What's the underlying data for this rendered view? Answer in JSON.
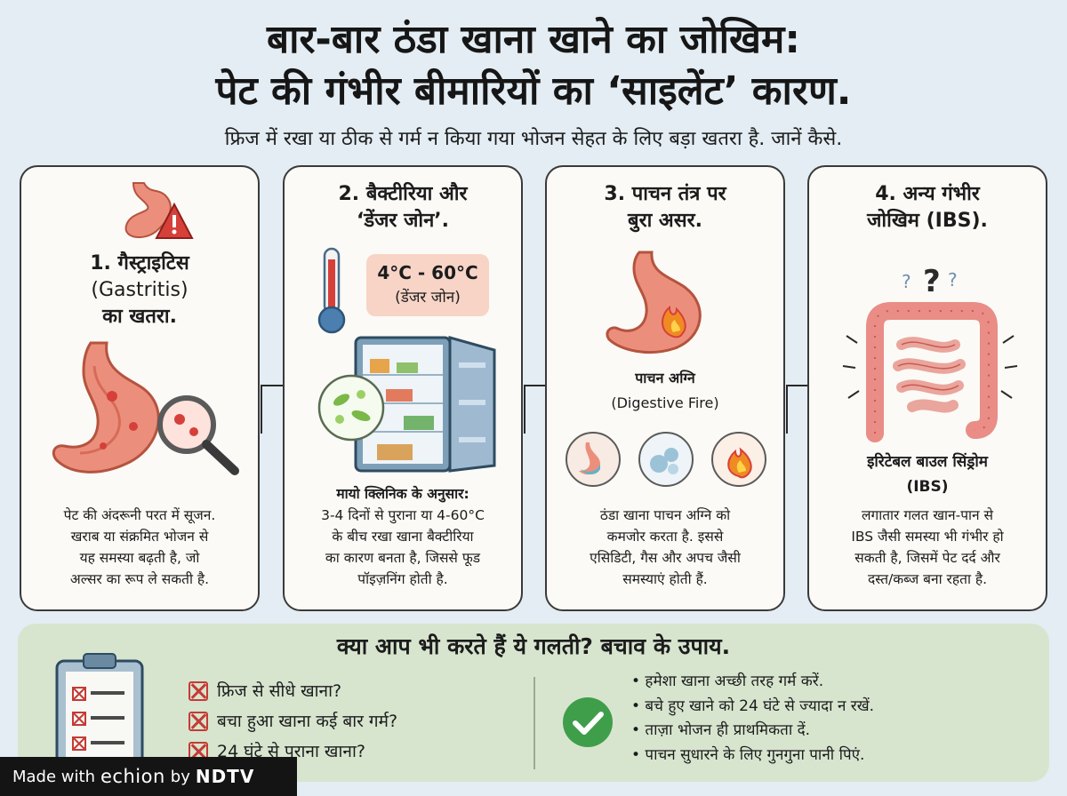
{
  "header": {
    "title_line1": "बार-बार ठंडा खाना खाने का जोखिम:",
    "title_line2": "पेट की गंभीर बीमारियों का ‘साइलेंट’ कारण.",
    "subtitle": "फ्रिज में रखा या ठीक से गर्म न किया गया भोजन सेहत के लिए बड़ा खतरा है. जानें कैसे."
  },
  "cards": [
    {
      "title_lines": [
        "1. गैस्ट्राइटिस",
        "(Gastritis)",
        "का खतरा."
      ],
      "body_lines": [
        "पेट की अंदरूनी परत में सूजन.",
        "खराब या संक्रमित भोजन से",
        "यह समस्या बढ़ती है, जो",
        "अल्सर का रूप ले सकती है."
      ]
    },
    {
      "title_lines": [
        "2. बैक्टीरिया और",
        "‘डेंजर जोन’."
      ],
      "temp_range": "4°C - 60°C",
      "temp_label": "(डेंजर जोन)",
      "body_heading": "मायो क्लिनिक के अनुसार:",
      "body_lines": [
        "3-4 दिनों से पुराना या 4-60°C",
        "के बीच रखा खाना बैक्टीरिया",
        "का कारण बनता है, जिससे फूड",
        "पॉइज़निंग होती है."
      ]
    },
    {
      "title_lines": [
        "3. पाचन तंत्र पर",
        "बुरा असर."
      ],
      "label_hindi": "पाचन अग्नि",
      "label_english": "(Digestive Fire)",
      "body_lines": [
        "ठंडा खाना पाचन अग्नि को",
        "कमजोर करता है. इससे",
        "एसिडिटी, गैस और अपच जैसी",
        "समस्याएं होती हैं."
      ]
    },
    {
      "title_lines": [
        "4. अन्य गंभीर",
        "जोखिम (IBS)."
      ],
      "label_hindi": "इरिटेबल बाउल सिंड्रोम",
      "label_english": "(IBS)",
      "body_lines": [
        "लगातार गलत खान-पान से",
        "IBS जैसी समस्या भी गंभीर हो",
        "सकती है, जिसमें पेट दर्द और",
        "दस्त/कब्ज बना रहता है."
      ]
    }
  ],
  "bottom": {
    "title": "क्या आप भी करते हैं ये गलती? बचाव के उपाय.",
    "mistakes": [
      "फ्रिज से सीधे खाना?",
      "बचा हुआ खाना कई बार गर्म?",
      "24 घंटे से पुराना खाना?"
    ],
    "tips": [
      "• हमेशा खाना अच्छी तरह गर्म करें.",
      "• बचे हुए खाने को 24 घंटे से ज्यादा न रखें.",
      "• ताज़ा भोजन ही प्राथमिकता दें.",
      "• पाचन सुधारने के लिए गुनगुना पानी पिएं."
    ]
  },
  "badge": {
    "prefix": "Made with",
    "brand": "echion",
    "by": "by",
    "publisher": "NDTV"
  },
  "colors": {
    "background": "#e3edf3",
    "card": "#fbfaf6",
    "stomach": "#eb8f7c",
    "danger": "#d6403a",
    "bottom_panel": "#d7e5cf",
    "check_green": "#3f9e4a"
  },
  "icons": [
    "stomach-warning-icon",
    "inflamed-stomach-magnifier-icon",
    "thermometer-icon",
    "open-fridge-icon",
    "bacteria-bubble-icon",
    "stomach-fire-icon",
    "stomach-acid-icon",
    "gas-bubbles-icon",
    "fire-icon",
    "intestines-icon",
    "question-marks-icon",
    "clipboard-icon",
    "x-checkbox-icon",
    "green-check-icon",
    "arrow-right-icon"
  ]
}
